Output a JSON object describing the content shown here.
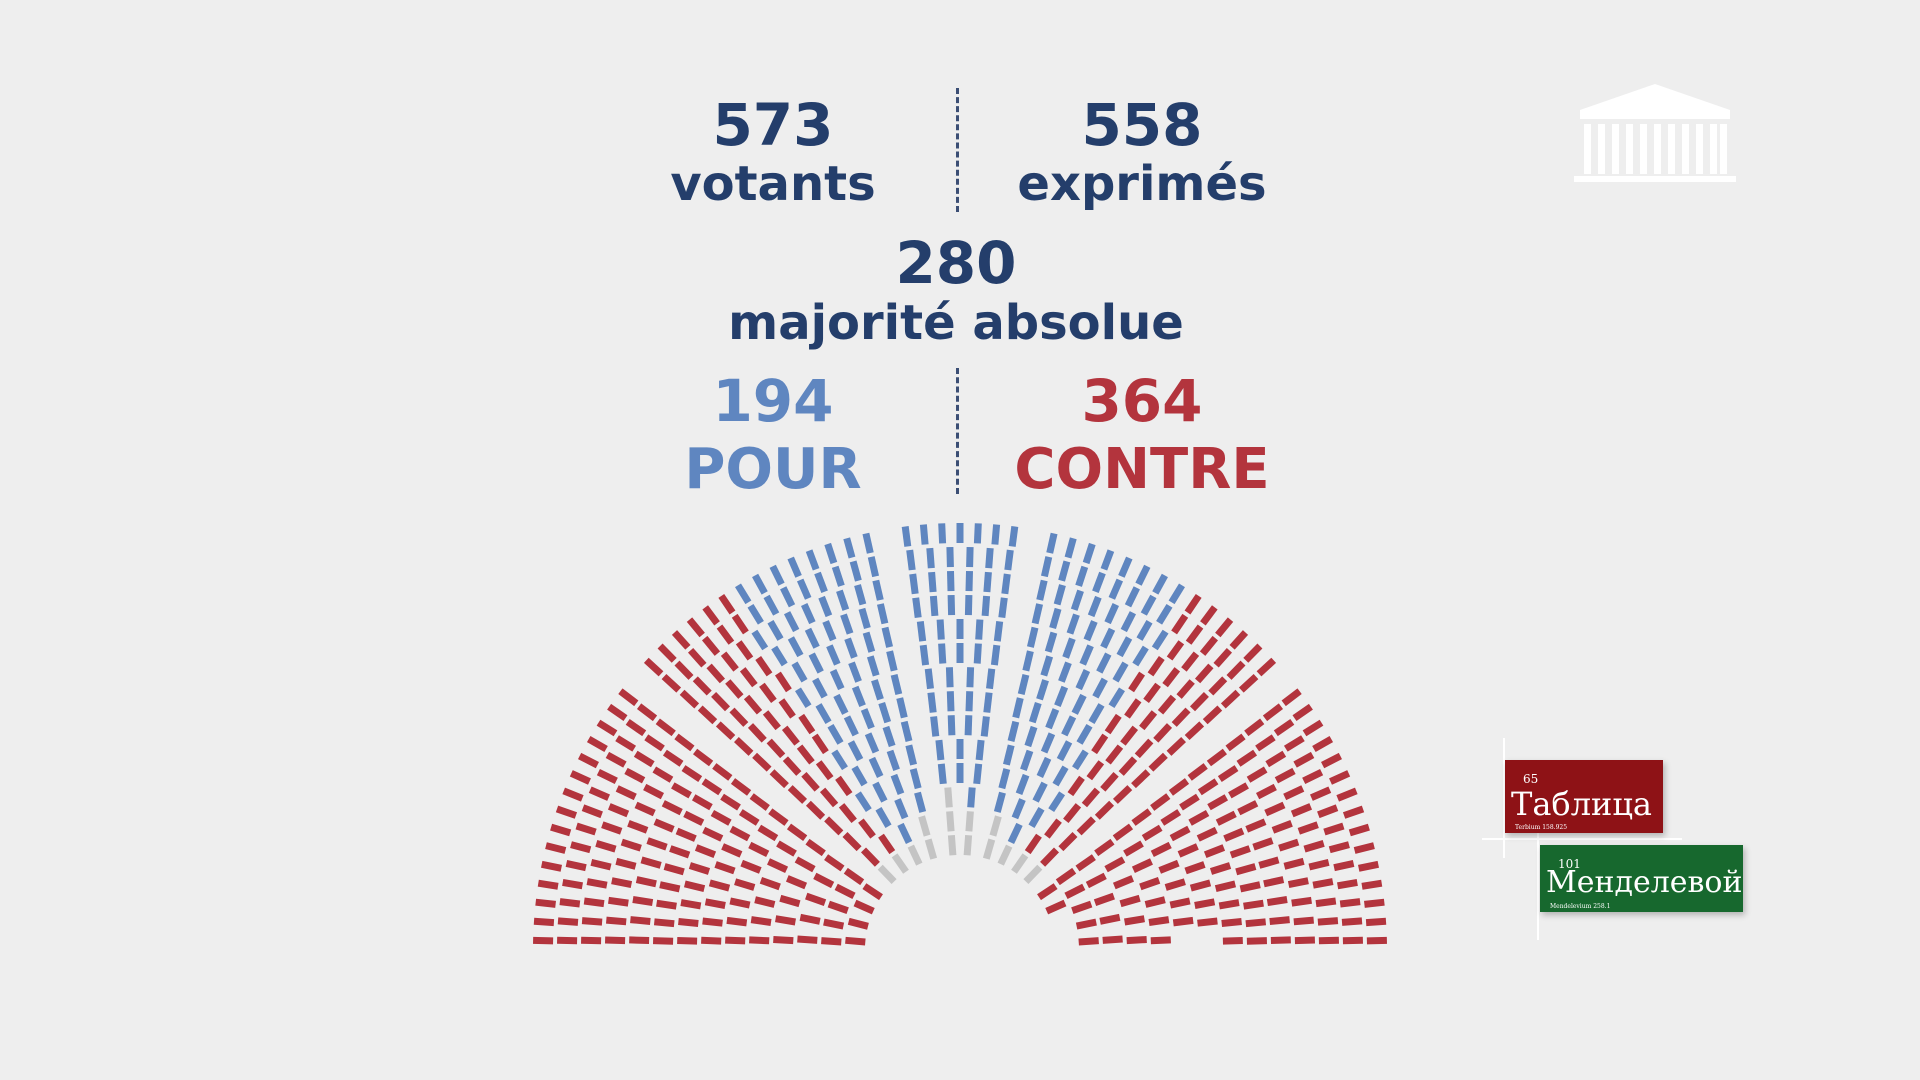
{
  "colors": {
    "navy": "#243e6b",
    "pour": "#5f86c0",
    "contre": "#b3343d",
    "abstention": "#c4c4c4",
    "background": "#eeeeee"
  },
  "stats": {
    "votants": {
      "value": "573",
      "label": "votants"
    },
    "exprimes": {
      "value": "558",
      "label": "exprimés"
    },
    "majorite": {
      "value": "280",
      "label": "majorité absolue"
    },
    "pour": {
      "value": "194",
      "label": "POUR"
    },
    "contre": {
      "value": "364",
      "label": "CONTRE"
    }
  },
  "watermark": {
    "tile1": {
      "number": "65",
      "text": "Таблица",
      "sub_name": "Terbium",
      "sub_mass": "158.925"
    },
    "tile2": {
      "number": "101",
      "text": "Менделевой",
      "sub_name": "Mendelevium",
      "sub_mass": "258.1"
    }
  },
  "chart_data": {
    "type": "hemicycle",
    "total_votants": 573,
    "exprimes": 558,
    "majorite_absolue": 280,
    "series": [
      {
        "name": "POUR",
        "value": 194,
        "color": "#5f86c0"
      },
      {
        "name": "CONTRE",
        "value": 364,
        "color": "#b3343d"
      }
    ],
    "abstention_color": "#c4c4c4"
  }
}
